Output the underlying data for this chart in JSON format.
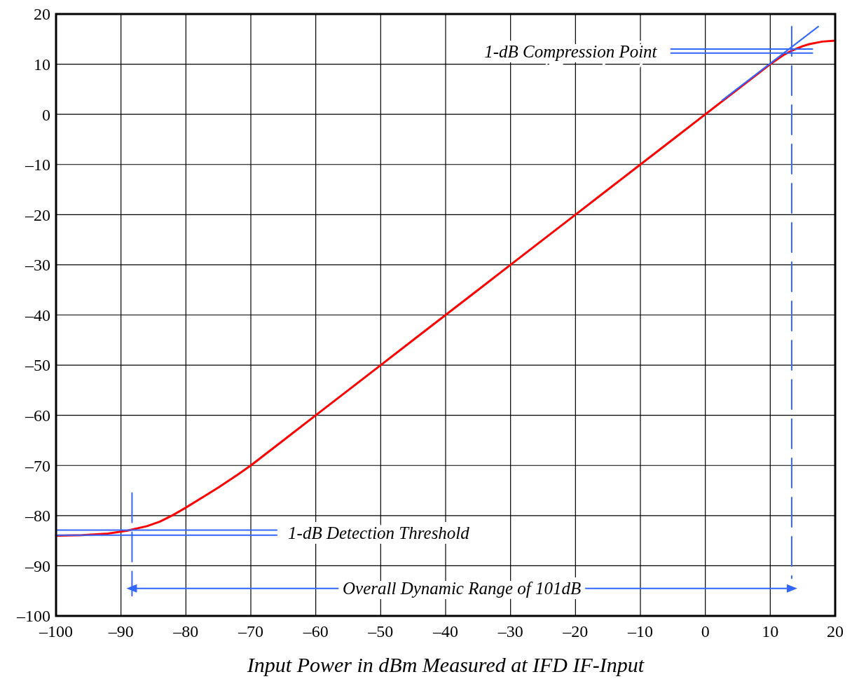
{
  "chart_data": {
    "type": "line",
    "xlabel": "Input Power in dBm Measured at IFD IF-Input",
    "xlim": [
      -100,
      20
    ],
    "ylim": [
      -100,
      20
    ],
    "xticks": [
      {
        "value": -100,
        "label": "–100"
      },
      {
        "value": -90,
        "label": "–90"
      },
      {
        "value": -80,
        "label": "–80"
      },
      {
        "value": -70,
        "label": "–70"
      },
      {
        "value": -60,
        "label": "–60"
      },
      {
        "value": -50,
        "label": "–50"
      },
      {
        "value": -40,
        "label": "–40"
      },
      {
        "value": -30,
        "label": "–30"
      },
      {
        "value": -20,
        "label": "–20"
      },
      {
        "value": -10,
        "label": "–10"
      },
      0,
      10,
      20
    ],
    "yticks": [
      {
        "value": -100,
        "label": "–100"
      },
      {
        "value": -90,
        "label": "–90"
      },
      {
        "value": -80,
        "label": "–80"
      },
      {
        "value": -70,
        "label": "–70"
      },
      {
        "value": -60,
        "label": "–60"
      },
      {
        "value": -50,
        "label": "–50"
      },
      {
        "value": -40,
        "label": "–40"
      },
      {
        "value": -30,
        "label": "–30"
      },
      {
        "value": -20,
        "label": "–20"
      },
      {
        "value": -10,
        "label": "–10"
      },
      0,
      10,
      20
    ],
    "grid": true,
    "line_style": "solid",
    "marker": "none",
    "series": [
      {
        "color": "#ff0000",
        "x": [
          -100,
          -96,
          -92,
          -89,
          -86,
          -84,
          -82,
          -80,
          -77,
          -75,
          -72,
          -70,
          -65,
          -60,
          -55,
          -50,
          -45,
          -40,
          -35,
          -30,
          -25,
          -20,
          -15,
          -10,
          -5,
          0,
          5,
          10,
          12,
          13.3,
          15,
          16,
          18,
          20
        ],
        "values": [
          -84,
          -83.9,
          -83.6,
          -83,
          -82.1,
          -81.2,
          -79.9,
          -78.4,
          -76,
          -74.4,
          -71.8,
          -70,
          -65,
          -60,
          -55,
          -50,
          -45,
          -40,
          -35,
          -30,
          -25,
          -20,
          -15,
          -10,
          -5,
          0,
          5,
          10,
          11.8,
          12.7,
          13.6,
          14,
          14.5,
          14.7
        ]
      },
      {
        "color": "#3366ff",
        "x": [
          2.6,
          17.4
        ],
        "values": [
          2.8,
          17.5
        ]
      },
      {
        "color": "#3366ff",
        "x": [
          -5.3,
          16.5
        ],
        "values": [
          13,
          13
        ]
      },
      {
        "color": "#3366ff",
        "x": [
          -5.3,
          16.5
        ],
        "values": [
          12.2,
          12.2
        ]
      },
      {
        "color": "#3366ff",
        "x": [
          13.3,
          13.3
        ],
        "values": [
          17.5,
          -92.5
        ],
        "line_style": "dashed"
      },
      {
        "color": "#3366ff",
        "x": [
          -100,
          -66
        ],
        "values": [
          -82.9,
          -82.9
        ]
      },
      {
        "color": "#3366ff",
        "x": [
          -100,
          -66
        ],
        "values": [
          -83.9,
          -83.9
        ]
      },
      {
        "color": "#3366ff",
        "x": [
          -88.3,
          -88.3
        ],
        "values": [
          -75.5,
          -96
        ],
        "line_style": "dashed"
      },
      {
        "color": "#3366ff",
        "x": [
          -88.3,
          13.3
        ],
        "values": [
          -94.5,
          -94.5
        ],
        "marker": "triangle"
      }
    ],
    "annotations": [
      "1-dB Compression Point",
      "1-dB Detection Threshold",
      "Overall Dynamic Range of 101dB"
    ]
  }
}
